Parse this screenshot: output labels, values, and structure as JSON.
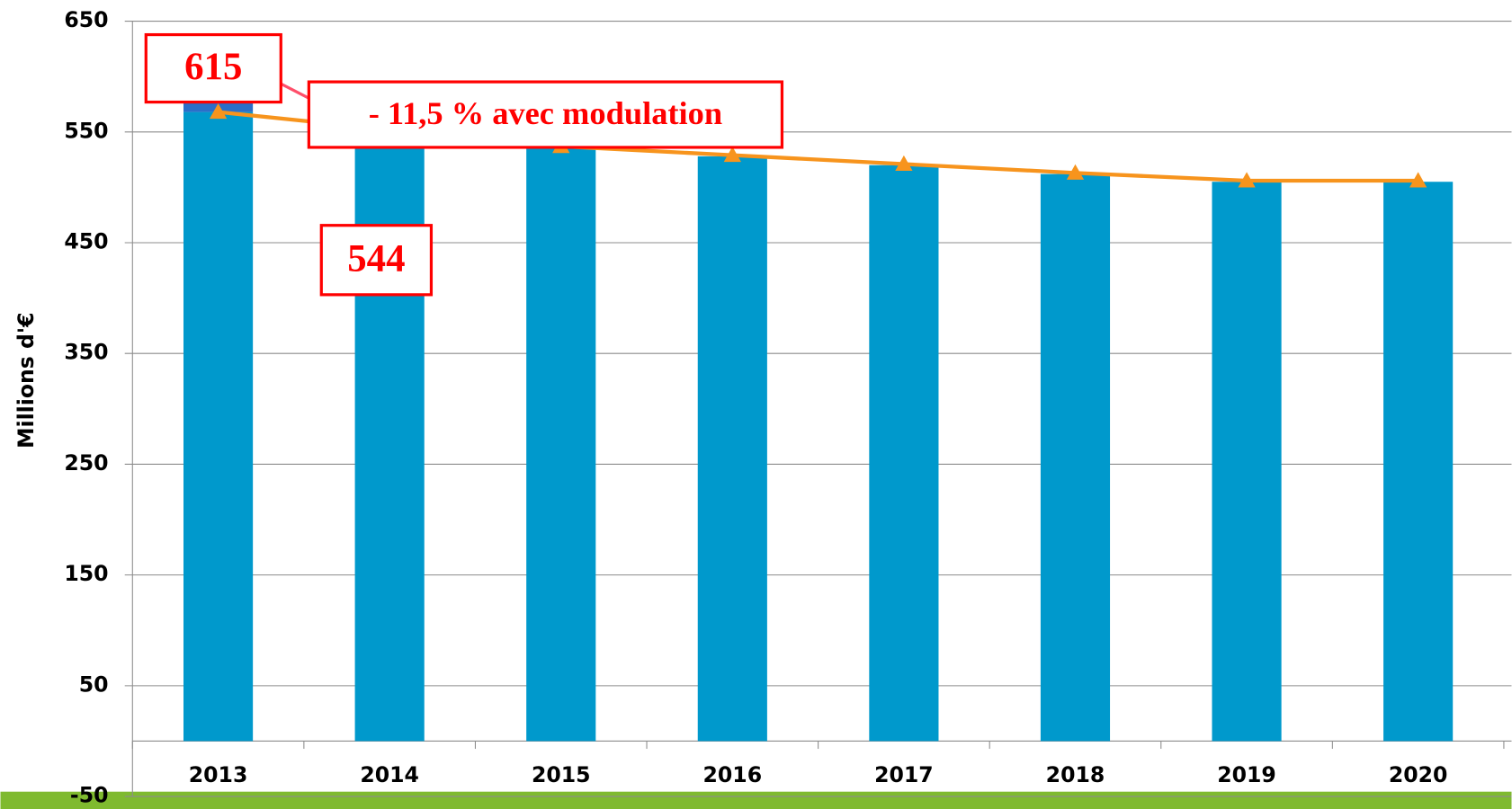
{
  "chart_data": {
    "type": "bar",
    "y_label": "Millions d'€",
    "categories": [
      "2013",
      "2014",
      "2015",
      "2016",
      "2017",
      "2018",
      "2019",
      "2020"
    ],
    "series": [
      {
        "type": "bar",
        "color": "#0099cc",
        "values": [
          568,
          544,
          537,
          528,
          520,
          512,
          505,
          505
        ]
      },
      {
        "type": "bar",
        "color": "#2a6fc9",
        "values": [
          10,
          null,
          null,
          null,
          null,
          null,
          null,
          null
        ]
      },
      {
        "type": "line",
        "color": "#f7941d",
        "values": [
          568,
          552,
          537,
          529,
          521,
          513,
          506,
          506
        ]
      }
    ],
    "stacked": true,
    "ylim": [
      -50,
      650
    ],
    "yticks": [
      -50,
      50,
      150,
      250,
      350,
      450,
      550,
      650
    ],
    "grid": true,
    "annotations": [
      "615",
      "- 11,5 % avec modulation",
      "544"
    ]
  }
}
